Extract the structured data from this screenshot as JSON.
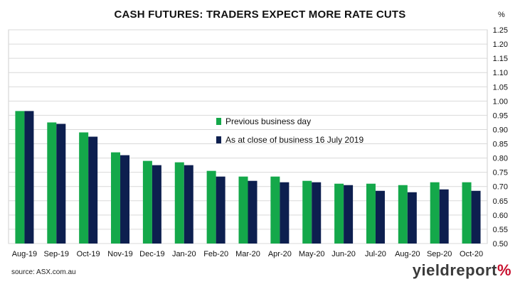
{
  "chart_data": {
    "type": "bar",
    "title": "CASH FUTURES: TRADERS EXPECT MORE RATE CUTS",
    "ylabel": "%",
    "ylim": [
      0.5,
      1.25
    ],
    "yticks": [
      "0.50",
      "0.55",
      "0.60",
      "0.65",
      "0.70",
      "0.75",
      "0.80",
      "0.85",
      "0.90",
      "0.95",
      "1.00",
      "1.05",
      "1.10",
      "1.15",
      "1.20",
      "1.25"
    ],
    "y_axis_position": "right",
    "grid": true,
    "legend_position": "center",
    "categories": [
      "Aug-19",
      "Sep-19",
      "Oct-19",
      "Nov-19",
      "Dec-19",
      "Jan-20",
      "Feb-20",
      "Mar-20",
      "Apr-20",
      "May-20",
      "Jun-20",
      "Jul-20",
      "Aug-20",
      "Sep-20",
      "Oct-20"
    ],
    "series": [
      {
        "name": "Previous business day",
        "color": "#14a84a",
        "values": [
          0.965,
          0.925,
          0.89,
          0.82,
          0.79,
          0.785,
          0.755,
          0.735,
          0.735,
          0.72,
          0.71,
          0.71,
          0.705,
          0.715,
          0.715
        ]
      },
      {
        "name": "As at close of business 16 July 2019",
        "color": "#0d1f4f",
        "values": [
          0.965,
          0.92,
          0.875,
          0.81,
          0.775,
          0.775,
          0.735,
          0.72,
          0.715,
          0.715,
          0.705,
          0.685,
          0.68,
          0.69,
          0.685
        ]
      }
    ]
  },
  "source": "source: ASX.com.au",
  "logo": {
    "text": "yieldreport",
    "symbol": "%"
  }
}
